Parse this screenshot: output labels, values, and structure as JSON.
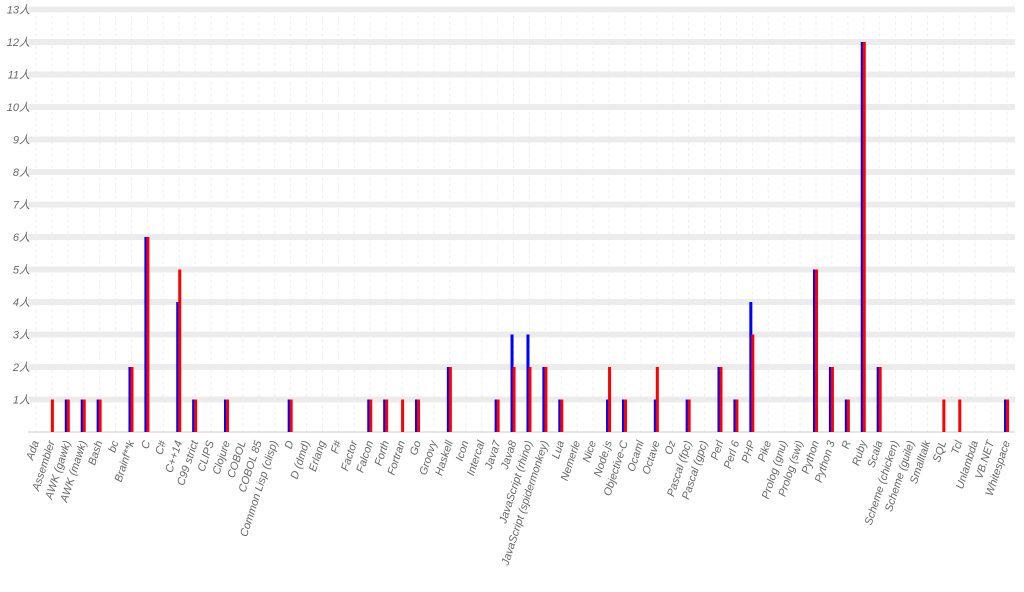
{
  "chart_data": {
    "type": "bar",
    "categories": [
      "Ada",
      "Assembler",
      "AWK (gawk)",
      "AWK (mawk)",
      "Bash",
      "bc",
      "Brainf**k",
      "C",
      "C#",
      "C++14",
      "C99 strict",
      "CLIPS",
      "Clojure",
      "COBOL",
      "COBOL 85",
      "Common Lisp (clisp)",
      "D",
      "D (dmd)",
      "Erlang",
      "F#",
      "Factor",
      "Falcon",
      "Forth",
      "Fortran",
      "Go",
      "Groovy",
      "Haskell",
      "Icon",
      "Intercal",
      "Java7",
      "Java8",
      "JavaScript (rhino)",
      "JavaScript (spidermonkey)",
      "Lua",
      "Nemerle",
      "Nice",
      "Node.js",
      "Objective-C",
      "Ocaml",
      "Octave",
      "Oz",
      "Pascal (fpc)",
      "Pascal (gpc)",
      "Perl",
      "Perl 6",
      "PHP",
      "Pike",
      "Prolog (gnu)",
      "Prolog (swi)",
      "Python",
      "Python 3",
      "R",
      "Ruby",
      "Scala",
      "Scheme (chicken)",
      "Scheme (guile)",
      "Smalltalk",
      "SQL",
      "Tcl",
      "Unlambda",
      "VB.NET",
      "Whitespace"
    ],
    "series": [
      {
        "color": "#0000ff",
        "values": [
          0,
          0,
          1,
          1,
          1,
          0,
          2,
          6,
          0,
          4,
          1,
          0,
          1,
          0,
          0,
          0,
          1,
          0,
          0,
          0,
          0,
          1,
          1,
          0,
          1,
          0,
          2,
          0,
          0,
          1,
          3,
          3,
          2,
          1,
          0,
          0,
          1,
          1,
          0,
          1,
          0,
          1,
          0,
          2,
          1,
          4,
          0,
          0,
          0,
          5,
          2,
          1,
          12,
          2,
          0,
          0,
          0,
          0,
          0,
          0,
          0,
          1
        ]
      },
      {
        "color": "#ff0000",
        "values": [
          0,
          1,
          1,
          1,
          1,
          0,
          2,
          6,
          0,
          5,
          1,
          0,
          1,
          0,
          0,
          0,
          1,
          0,
          0,
          0,
          0,
          1,
          1,
          1,
          1,
          0,
          2,
          0,
          0,
          1,
          2,
          2,
          2,
          1,
          0,
          0,
          2,
          1,
          0,
          2,
          0,
          1,
          0,
          2,
          1,
          3,
          0,
          0,
          0,
          5,
          2,
          1,
          12,
          2,
          0,
          0,
          0,
          1,
          1,
          0,
          0,
          1
        ]
      }
    ],
    "ylim": [
      0,
      13
    ],
    "yticks": [
      {
        "value": 1,
        "label": "1人"
      },
      {
        "value": 2,
        "label": "2人"
      },
      {
        "value": 3,
        "label": "3人"
      },
      {
        "value": 4,
        "label": "4人"
      },
      {
        "value": 5,
        "label": "5人"
      },
      {
        "value": 6,
        "label": "6人"
      },
      {
        "value": 7,
        "label": "7人"
      },
      {
        "value": 8,
        "label": "8人"
      },
      {
        "value": 9,
        "label": "9人"
      },
      {
        "value": 10,
        "label": "10人"
      },
      {
        "value": 11,
        "label": "11人"
      },
      {
        "value": 12,
        "label": "12人"
      },
      {
        "value": 13,
        "label": "13人"
      }
    ],
    "grid": true
  }
}
